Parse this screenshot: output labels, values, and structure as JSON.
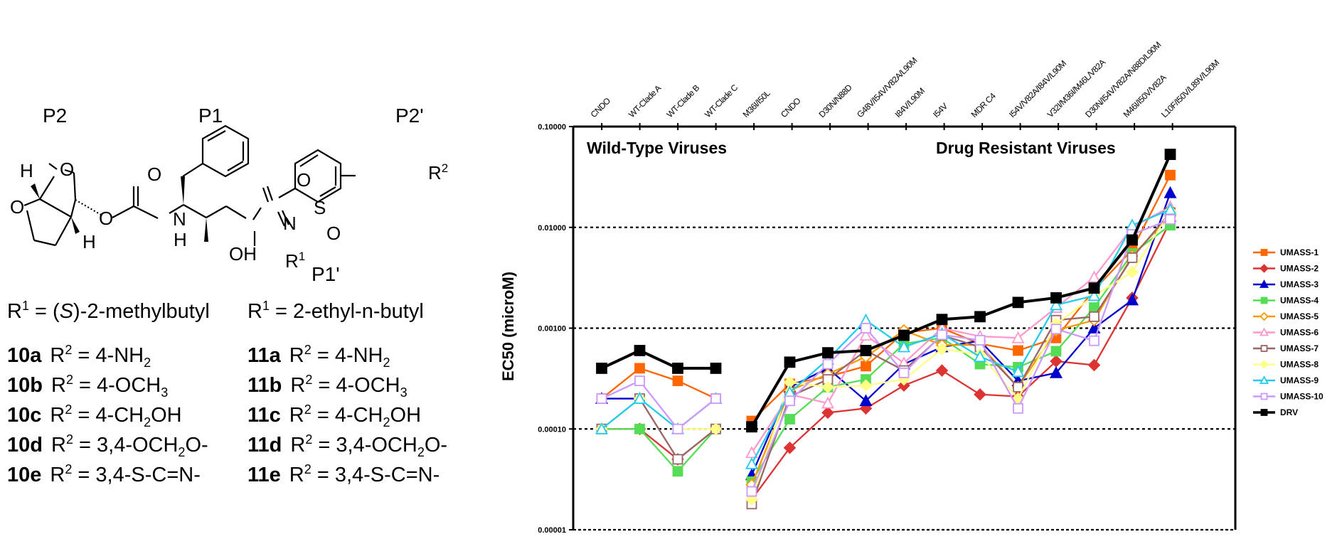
{
  "structure": {
    "site_labels": [
      "P2",
      "P1",
      "P2'",
      "P1'"
    ],
    "atoms": {
      "h_top": "H",
      "h_bottom": "H",
      "o_ring1": "O",
      "o_ring2": "O",
      "o_ester": "O",
      "o_carbonyl": "O",
      "n_amide": "N",
      "h_amide": "H",
      "oh": "OH",
      "n_sulfonamide": "N",
      "s": "S",
      "o_s1": "O",
      "o_s2": "O",
      "r1": "R",
      "r1_sup": "1",
      "r2": "R",
      "r2_sup": "2"
    },
    "r1_definitions": [
      {
        "prefix": "R",
        "sup": "1",
        "eq": " = (",
        "italic": "S",
        "rest": ")-2-methylbutyl"
      },
      {
        "prefix": "R",
        "sup": "1",
        "eq": " = 2-ethyl-n-butyl",
        "italic": "",
        "rest": ""
      }
    ],
    "compounds_left": [
      {
        "id": "10a",
        "r": "R",
        "sup": "2",
        "parts": [
          " = 4-NH",
          "2",
          ""
        ]
      },
      {
        "id": "10b",
        "r": "R",
        "sup": "2",
        "parts": [
          " = 4-OCH",
          "3",
          ""
        ]
      },
      {
        "id": "10c",
        "r": "R",
        "sup": "2",
        "parts": [
          " = 4-CH",
          "2",
          "OH"
        ]
      },
      {
        "id": "10d",
        "r": "R",
        "sup": "2",
        "parts": [
          " = 3,4-OCH",
          "2",
          "O-"
        ]
      },
      {
        "id": "10e",
        "r": "R",
        "sup": "2",
        "parts": [
          " = 3,4-S-C=N-",
          "",
          ""
        ]
      }
    ],
    "compounds_right": [
      {
        "id": "11a",
        "r": "R",
        "sup": "2",
        "parts": [
          " = 4-NH",
          "2",
          ""
        ]
      },
      {
        "id": "11b",
        "r": "R",
        "sup": "2",
        "parts": [
          " = 4-OCH",
          "3",
          ""
        ]
      },
      {
        "id": "11c",
        "r": "R",
        "sup": "2",
        "parts": [
          " = 4-CH",
          "2",
          "OH"
        ]
      },
      {
        "id": "11d",
        "r": "R",
        "sup": "2",
        "parts": [
          " = 3,4-OCH",
          "2",
          "O-"
        ]
      },
      {
        "id": "11e",
        "r": "R",
        "sup": "2",
        "parts": [
          " = 3,4-S-C=N-",
          "",
          ""
        ]
      }
    ]
  },
  "chart_data": {
    "type": "line",
    "title": "",
    "xlabel": "",
    "ylabel": "EC50 (microM)",
    "yscale": "log",
    "ylim": [
      1e-05,
      0.1
    ],
    "y_ticks": [
      "0.10000",
      "0.01000",
      "0.00100",
      "0.00010",
      "0.00001"
    ],
    "y_tick_values": [
      0.1,
      0.01,
      0.001,
      0.0001,
      1e-05
    ],
    "grid": "dotted horizontal at 0.01, 0.001, 0.0001",
    "legend_position": "right",
    "regions": [
      {
        "label": "Wild-Type Viruses",
        "categories": [
          "CNDO",
          "WT-Clade A",
          "WT-Clade B",
          "WT-Clade C"
        ]
      },
      {
        "label": "Drug Resistant Viruses",
        "categories": [
          "M36I/I50L",
          "CNDO",
          "D30N/N88D",
          "G48V/I54V/V82A/L90M",
          "I84V/L90M",
          "I54V",
          "MDR C4",
          "I54V/V82A/I84V/L90M",
          "V32I/M36I/M46L/V82A",
          "D30N/I54V/V82A/N88D/L90M",
          "M46I/I50V/V82A",
          "L10F/I50V/L89V/L90M"
        ]
      }
    ],
    "categories": [
      "CNDO",
      "WT-Clade A",
      "WT-Clade B",
      "WT-Clade C",
      "M36I/I50L",
      "CNDO",
      "D30N/N88D",
      "G48V/I54V/V82A/L90M",
      "I84V/L90M",
      "I54V",
      "MDR C4",
      "I54V/V82A/I84V/L90M",
      "V32I/M36I/M46L/V82A",
      "D30N/I54V/V82A/N88D/L90M",
      "M46I/I50V/V82A",
      "L10F/I50V/L89V/L90M"
    ],
    "series": [
      {
        "name": "UMASS-1",
        "color": "#FF6600",
        "marker": "square",
        "filled": true,
        "wt": [
          0.0002,
          0.0004,
          0.0003,
          0.0002
        ],
        "dr": [
          0.00012,
          0.00028,
          0.00033,
          0.00042,
          0.0009,
          0.001,
          0.0007,
          0.0006,
          0.0008,
          0.0024,
          0.006,
          0.033
        ]
      },
      {
        "name": "UMASS-2",
        "color": "#DD3333",
        "marker": "diamond",
        "filled": true,
        "wt": [
          0.0001,
          0.0001,
          5e-05,
          0.0001
        ],
        "dr": [
          2e-05,
          6.5e-05,
          0.000145,
          0.00016,
          0.00027,
          0.00038,
          0.00022,
          0.00021,
          0.00047,
          0.00043,
          0.002,
          0.0115
        ]
      },
      {
        "name": "UMASS-3",
        "color": "#0000CC",
        "marker": "triangle",
        "filled": true,
        "wt": [
          0.0002,
          0.0002,
          null,
          null
        ],
        "dr": [
          3.5e-05,
          0.00026,
          0.0004,
          0.00019,
          0.00044,
          0.00065,
          0.00075,
          0.0003,
          0.00036,
          0.001,
          0.0019,
          0.022
        ]
      },
      {
        "name": "UMASS-4",
        "color": "#55DD55",
        "marker": "square",
        "filled": true,
        "wt": [
          0.0001,
          0.0001,
          3.8e-05,
          0.0001
        ],
        "dr": [
          3e-05,
          0.000125,
          0.00026,
          0.00031,
          0.0007,
          0.0008,
          0.00044,
          0.00041,
          0.00059,
          0.0016,
          0.0055,
          0.0105
        ]
      },
      {
        "name": "UMASS-5",
        "color": "#FF9900",
        "marker": "diamond",
        "filled": false,
        "wt": [
          null,
          null,
          null,
          null
        ],
        "dr": [
          2.8e-05,
          0.00024,
          0.00035,
          0.00052,
          0.00095,
          0.00068,
          0.00068,
          0.00026,
          0.00095,
          0.0012,
          0.0052,
          0.013
        ]
      },
      {
        "name": "UMASS-6",
        "color": "#FF99CC",
        "marker": "triangle",
        "filled": false,
        "wt": [
          null,
          null,
          null,
          null
        ],
        "dr": [
          5.8e-05,
          0.00022,
          0.00018,
          0.00085,
          0.00045,
          0.001,
          0.00083,
          0.0008,
          0.0016,
          0.0032,
          0.01,
          0.016
        ]
      },
      {
        "name": "UMASS-7",
        "color": "#996666",
        "marker": "square",
        "filled": false,
        "wt": [
          0.0001,
          0.0002,
          5e-05,
          0.0001
        ],
        "dr": [
          1.8e-05,
          0.00021,
          0.00031,
          0.0006,
          0.00038,
          0.00085,
          0.00065,
          0.00026,
          0.0012,
          0.0013,
          0.005,
          0.014
        ]
      },
      {
        "name": "UMASS-8",
        "color": "#FFFF88",
        "marker": "diamond",
        "filled": true,
        "wt": [
          0.0001,
          0.0002,
          0.0001,
          0.0001
        ],
        "dr": [
          2e-05,
          0.00029,
          0.00026,
          0.00027,
          0.00031,
          0.00062,
          0.00055,
          0.0002,
          0.0011,
          0.0021,
          0.0036,
          0.0145
        ]
      },
      {
        "name": "UMASS-9",
        "color": "#22CCEE",
        "marker": "triangle",
        "filled": false,
        "wt": [
          0.0001,
          0.0002,
          0.0001,
          0.0002
        ],
        "dr": [
          4.5e-05,
          0.00023,
          0.00049,
          0.0012,
          0.00065,
          0.00088,
          0.00052,
          0.00037,
          0.0017,
          0.0021,
          0.0105,
          0.015
        ]
      },
      {
        "name": "UMASS-10",
        "color": "#CC99FF",
        "marker": "square",
        "filled": false,
        "wt": [
          0.0002,
          0.0003,
          0.0001,
          0.0002
        ],
        "dr": [
          2.4e-05,
          0.00019,
          0.00044,
          0.001,
          0.00036,
          0.00086,
          0.00076,
          0.00016,
          0.00098,
          0.00075,
          0.0085,
          0.012
        ]
      },
      {
        "name": "DRV",
        "color": "#000000",
        "marker": "square",
        "filled": true,
        "wt": [
          0.0004,
          0.0006,
          0.0004,
          0.0004
        ],
        "dr": [
          0.000105,
          0.00046,
          0.00057,
          0.0006,
          0.00085,
          0.00122,
          0.0013,
          0.0018,
          0.002,
          0.0025,
          0.0075,
          0.053
        ]
      }
    ]
  }
}
